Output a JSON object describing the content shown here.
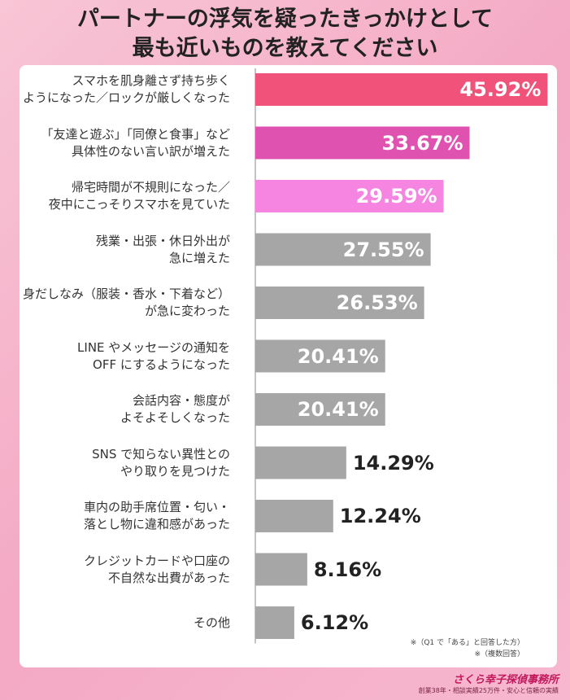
{
  "title_lines": [
    "パートナーの浮気を疑ったきっかけとして",
    "最も近いものを教えてください"
  ],
  "chart_data": {
    "type": "bar",
    "orientation": "horizontal",
    "categories": [
      [
        "スマホを肌身離さず持ち歩く",
        "ようになった／ロックが厳しくなった"
      ],
      [
        "「友達と遊ぶ」「同僚と食事」など",
        "具体性のない言い訳が増えた"
      ],
      [
        "帰宅時間が不規則になった／",
        "夜中にこっそりスマホを見ていた"
      ],
      [
        "残業・出張・休日外出が",
        "急に増えた"
      ],
      [
        "身だしなみ（服装・香水・下着など）",
        "が急に変わった"
      ],
      [
        "LINE やメッセージの通知を",
        "OFF にするようになった"
      ],
      [
        "会話内容・態度が",
        "よそよそしくなった"
      ],
      [
        "SNS で知らない異性との",
        "やり取りを見つけた"
      ],
      [
        "車内の助手席位置・匂い・",
        "落とし物に違和感があった"
      ],
      [
        "クレジットカードや口座の",
        "不自然な出費があった"
      ],
      [
        "その他"
      ]
    ],
    "values": [
      45.92,
      33.67,
      29.59,
      27.55,
      26.53,
      20.41,
      20.41,
      14.29,
      12.24,
      8.16,
      6.12
    ],
    "value_labels": [
      "45.92%",
      "33.67%",
      "29.59%",
      "27.55%",
      "26.53%",
      "20.41%",
      "20.41%",
      "14.29%",
      "12.24%",
      "8.16%",
      "6.12%"
    ],
    "bar_colors": [
      "#f0527a",
      "#e052b0",
      "#f585e0",
      "#a6a6a6",
      "#a6a6a6",
      "#a6a6a6",
      "#a6a6a6",
      "#a6a6a6",
      "#a6a6a6",
      "#a6a6a6",
      "#a6a6a6"
    ],
    "label_inside_min": 20,
    "xlim": [
      0,
      46
    ]
  },
  "notes": [
    "※（Q1 で「ある」と回答した方）",
    "※（複数回答）"
  ],
  "brand": {
    "name": "さくら幸子探偵事務所",
    "tagline": "創業38年・相談実績25万件・安心と信頼の実績"
  }
}
